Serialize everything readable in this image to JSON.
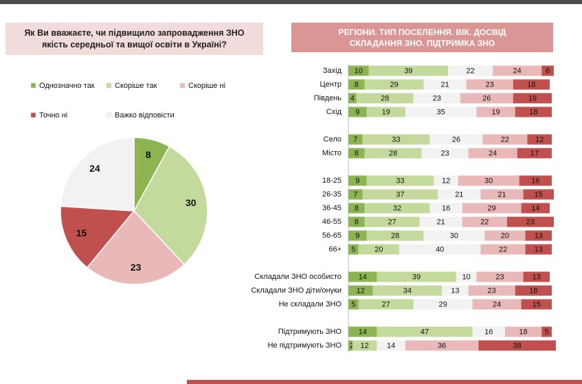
{
  "chart_data": [
    {
      "type": "pie",
      "title": "Як Ви вважаєте, чи підвищило запровадження ЗНО якість середньої та вищої освіти в Україні?",
      "categories": [
        "Однозначно так",
        "Скоріше  так",
        "Скоріше  ні",
        "Точно ні",
        "Важко відповісти"
      ],
      "values": [
        8,
        30,
        23,
        15,
        24
      ],
      "colors": [
        "#8cb552",
        "#c4d99c",
        "#e8b9b8",
        "#c0504d",
        "#f2f2f2"
      ]
    },
    {
      "type": "stacked-bar-h",
      "title": "РЕГІОНИ. ТИП ПОСЕЛЕННЯ. ВІК. ДОСВІД  СКЛАДАННЯ ЗНО. ПІДТРИМКА ЗНО",
      "categories": [
        "Захід",
        "Центр",
        "Південь",
        "Схід",
        null,
        "Село",
        "Місто",
        null,
        "18-25",
        "26-35",
        "36-45",
        "46-55",
        "56-65",
        "66+",
        null,
        "Складали ЗНО особисто",
        "Складали ЗНО діти/онуки",
        "Не складали ЗНО",
        null,
        "Підтримують ЗНО",
        "Не підтримують ЗНО"
      ],
      "series": [
        {
          "color": "#8cb552",
          "values": [
            10,
            8,
            4,
            9,
            null,
            7,
            8,
            null,
            9,
            7,
            8,
            8,
            9,
            5,
            null,
            14,
            12,
            5,
            null,
            14,
            2
          ]
        },
        {
          "color": "#c4d99c",
          "values": [
            39,
            29,
            28,
            19,
            null,
            33,
            28,
            null,
            33,
            37,
            32,
            27,
            28,
            20,
            null,
            39,
            34,
            27,
            null,
            47,
            12
          ]
        },
        {
          "color": "#f2f2f2",
          "values": [
            22,
            21,
            23,
            35,
            null,
            26,
            23,
            null,
            12,
            21,
            16,
            21,
            30,
            40,
            null,
            10,
            13,
            29,
            null,
            16,
            14
          ]
        },
        {
          "color": "#e8b9b8",
          "values": [
            24,
            23,
            26,
            19,
            null,
            22,
            24,
            null,
            30,
            21,
            29,
            22,
            20,
            22,
            null,
            23,
            23,
            24,
            null,
            18,
            36
          ]
        },
        {
          "color": "#c0504d",
          "values": [
            6,
            18,
            19,
            18,
            null,
            12,
            17,
            null,
            16,
            15,
            14,
            23,
            13,
            13,
            null,
            13,
            18,
            15,
            null,
            5,
            38
          ]
        }
      ]
    }
  ]
}
